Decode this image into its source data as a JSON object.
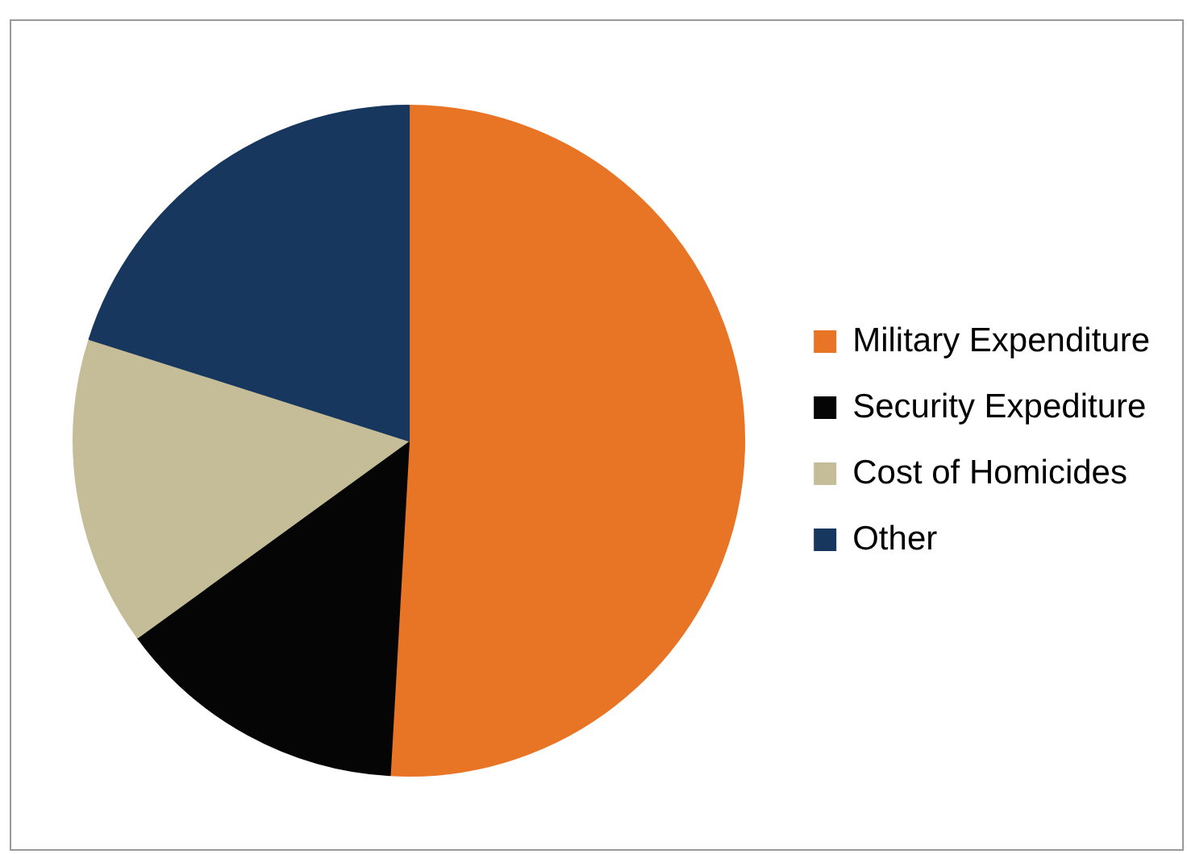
{
  "chart_data": {
    "type": "pie",
    "categories": [
      "Military Expenditure",
      "Security Expediture",
      "Cost of Homicides",
      "Other"
    ],
    "values": [
      50.9,
      14.1,
      14.9,
      20.1
    ],
    "colors": [
      "#e87425",
      "#050505",
      "#c4bd97",
      "#17375e"
    ],
    "legend": "right"
  }
}
